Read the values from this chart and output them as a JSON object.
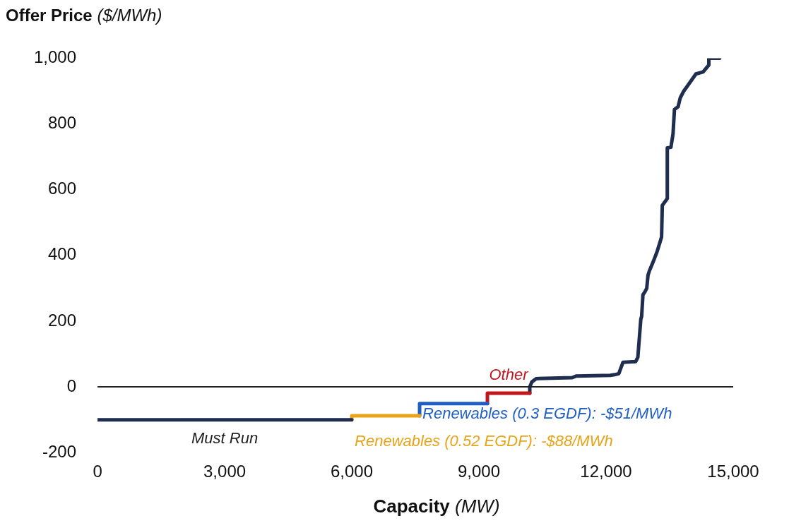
{
  "chart_data": {
    "type": "line",
    "xlabel": "Capacity (MW)",
    "ylabel": "Offer Price ($/MWh)",
    "xlim": [
      0,
      15000
    ],
    "xticks": [
      {
        "value": 0,
        "label": "0"
      },
      {
        "value": 3000,
        "label": "3,000"
      },
      {
        "value": 6000,
        "label": "6,000"
      },
      {
        "value": 9000,
        "label": "9,000"
      },
      {
        "value": 12000,
        "label": "12,000"
      },
      {
        "value": 15000,
        "label": "15,000"
      }
    ],
    "ylim": [
      -200,
      1000
    ],
    "yticks": [
      -200,
      0,
      200,
      400,
      600,
      800,
      {
        "value": 1000,
        "label": "1,000"
      }
    ],
    "grid": false,
    "legend": false,
    "marker": "none",
    "line_style": "solid",
    "ref_lines": [
      {
        "axis": "y",
        "value": 0,
        "color": "#222222"
      }
    ],
    "annotations": [
      {
        "text": "Other",
        "x": 9700,
        "y": -19
      }
    ],
    "series": [
      {
        "name": "Must Run",
        "color": "#1f2d4f",
        "x": [
          0,
          6000
        ],
        "values": [
          -100,
          -100
        ]
      },
      {
        "name": "Renewables (0.52 EGDF): -$88/MWh",
        "color": "#e8a317",
        "x": [
          6000,
          6000,
          7600
        ],
        "values": [
          -100,
          -88,
          -88
        ]
      },
      {
        "name": "Renewables (0.3 EGDF): -$51/MWh",
        "color": "#1f5fc4",
        "x": [
          7600,
          7600,
          9200
        ],
        "values": [
          -88,
          -51,
          -51
        ]
      },
      {
        "color": "#c0161c",
        "x": [
          9200,
          9200,
          10200
        ],
        "values": [
          -51,
          -19,
          -19
        ]
      },
      {
        "color": "#1f2d4f",
        "x": [
          10200,
          10200,
          10250,
          10350,
          11200,
          11300,
          12100,
          12200,
          12300,
          12400,
          12700,
          12750,
          12820,
          12840,
          12870,
          12920,
          12960,
          12990,
          13020,
          13107,
          13200,
          13310,
          13327,
          13445,
          13445,
          13530,
          13580,
          13614,
          13699,
          13750,
          13834,
          13918,
          14120,
          14290,
          14425,
          14425,
          14460,
          14680
        ],
        "values": [
          -19,
          0,
          15,
          25,
          28,
          33,
          35,
          37,
          40,
          75,
          77,
          90,
          206,
          215,
          280,
          290,
          300,
          340,
          352,
          379,
          410,
          456,
          552,
          573,
          727,
          729,
          769,
          844,
          852,
          879,
          900,
          915,
          952,
          958,
          979,
          1000,
          1000,
          1000
        ]
      }
    ]
  }
}
